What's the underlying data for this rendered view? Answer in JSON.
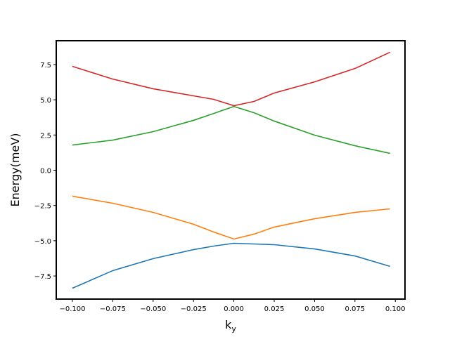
{
  "chart_data": {
    "type": "line",
    "xlabel": {
      "text": "k",
      "subscript": "y"
    },
    "ylabel": "Energy(meV)",
    "x": [
      -0.1,
      -0.075,
      -0.05,
      -0.025,
      -0.0125,
      0,
      0.0125,
      0.025,
      0.05,
      0.075,
      0.0967
    ],
    "series": [
      {
        "color": "#1f77b4",
        "values": [
          -8.37,
          -7.12,
          -6.27,
          -5.63,
          -5.38,
          -5.18,
          -5.23,
          -5.28,
          -5.58,
          -6.08,
          -6.82
        ]
      },
      {
        "color": "#ff7f0e",
        "values": [
          -1.84,
          -2.34,
          -2.99,
          -3.83,
          -4.38,
          -4.88,
          -4.53,
          -4.03,
          -3.44,
          -2.99,
          -2.74
        ]
      },
      {
        "color": "#2ca02c",
        "values": [
          1.79,
          2.14,
          2.74,
          3.54,
          4.03,
          4.53,
          4.08,
          3.49,
          2.49,
          1.74,
          1.2
        ]
      },
      {
        "color": "#d62728",
        "values": [
          7.37,
          6.47,
          5.78,
          5.28,
          5.03,
          4.58,
          4.88,
          5.48,
          6.27,
          7.22,
          8.37
        ]
      }
    ],
    "xlim": [
      -0.11,
      0.106
    ],
    "ylim": [
      -9.14,
      9.19
    ],
    "xticks": [
      {
        "value": -0.1,
        "label": "−0.100"
      },
      {
        "value": -0.075,
        "label": "−0.075"
      },
      {
        "value": -0.05,
        "label": "−0.050"
      },
      {
        "value": -0.025,
        "label": "−0.025"
      },
      {
        "value": 0,
        "label": "0.000"
      },
      {
        "value": 0.025,
        "label": "0.025"
      },
      {
        "value": 0.05,
        "label": "0.050"
      },
      {
        "value": 0.075,
        "label": "0.075"
      },
      {
        "value": 0.1,
        "label": "0.100"
      }
    ],
    "yticks": [
      {
        "value": -7.5,
        "label": "−7.5"
      },
      {
        "value": -5,
        "label": "−5.0"
      },
      {
        "value": -2.5,
        "label": "−2.5"
      },
      {
        "value": 0,
        "label": "0.0"
      },
      2.5,
      {
        "value": 5,
        "label": "5.0"
      },
      7.5
    ],
    "grid": false
  }
}
